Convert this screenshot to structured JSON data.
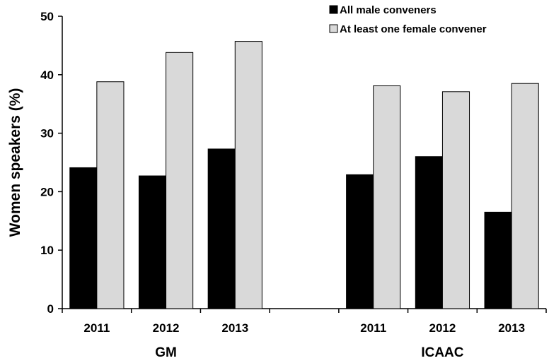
{
  "chart_data": {
    "type": "bar",
    "ylabel": "Women speakers (%)",
    "ylim": [
      0,
      50
    ],
    "yticks": [
      0,
      10,
      20,
      30,
      40,
      50
    ],
    "grid": false,
    "legend_position": "top-right",
    "groups": [
      {
        "name": "GM",
        "categories": [
          "2011",
          "2012",
          "2013"
        ]
      },
      {
        "name": "ICAAC",
        "categories": [
          "2011",
          "2012",
          "2013"
        ]
      }
    ],
    "series": [
      {
        "name": "All male conveners",
        "color": "#000000",
        "values": [
          24.1,
          22.7,
          27.3,
          22.9,
          26.0,
          16.5
        ]
      },
      {
        "name": "At least one female convener",
        "color": "#d9d9d9",
        "values": [
          38.8,
          43.8,
          45.7,
          38.1,
          37.1,
          38.5
        ]
      }
    ]
  }
}
